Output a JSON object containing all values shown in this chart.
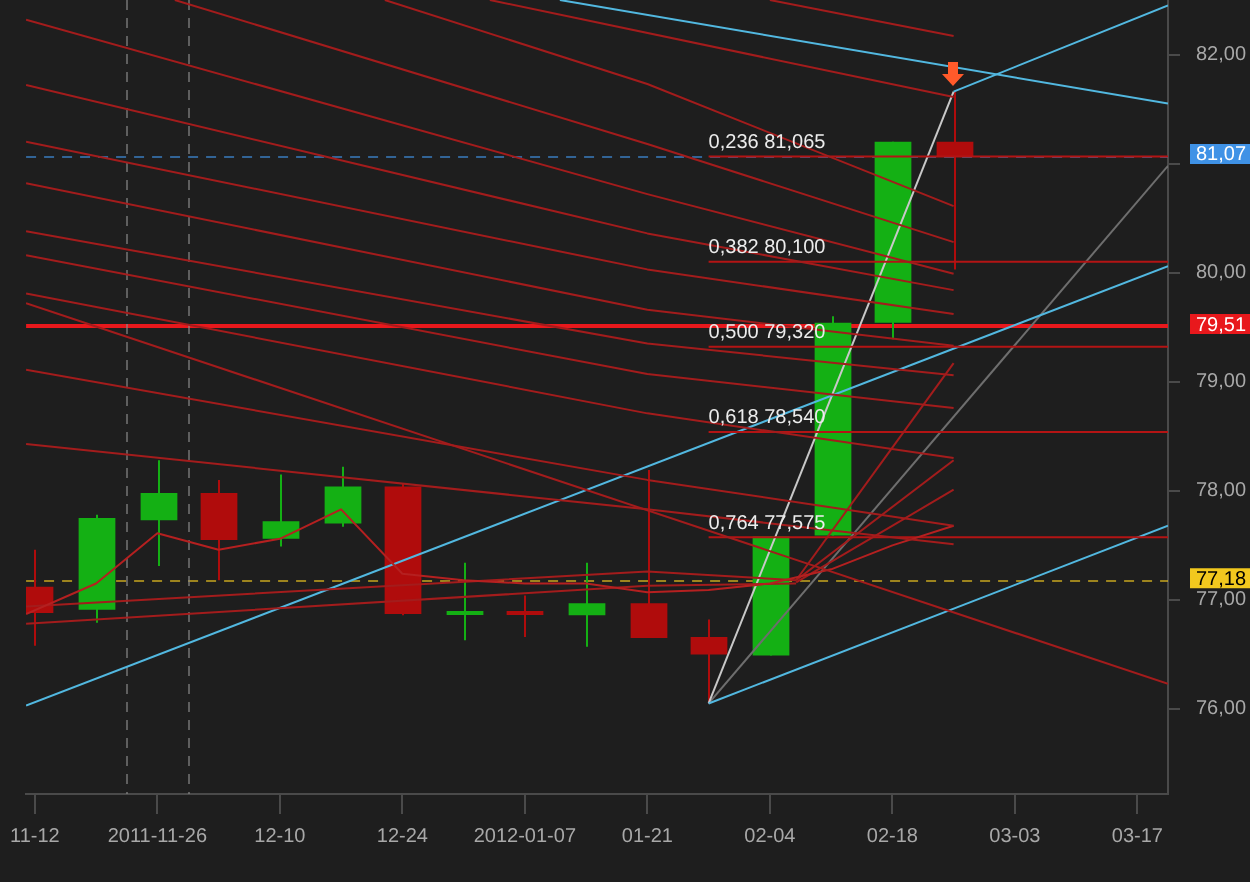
{
  "chart_data": {
    "type": "candlestick",
    "x": [
      "2011-11-12",
      "2011-11-19",
      "2011-11-26",
      "2011-12-03",
      "2011-12-10",
      "2011-12-17",
      "2011-12-24",
      "2011-12-31",
      "2012-01-07",
      "2012-01-14",
      "2012-01-21",
      "2012-01-28",
      "2012-02-04",
      "2012-02-11",
      "2012-02-18",
      "2012-02-25"
    ],
    "ohlc": [
      [
        77.12,
        77.46,
        76.58,
        76.88
      ],
      [
        76.91,
        77.78,
        76.79,
        77.75
      ],
      [
        77.73,
        78.28,
        77.31,
        77.98
      ],
      [
        77.98,
        78.1,
        77.18,
        77.55
      ],
      [
        77.56,
        78.15,
        77.49,
        77.72
      ],
      [
        77.7,
        78.22,
        77.67,
        78.04
      ],
      [
        78.04,
        78.07,
        76.86,
        76.87
      ],
      [
        76.87,
        77.34,
        76.63,
        76.89
      ],
      [
        76.89,
        77.04,
        76.66,
        76.87
      ],
      [
        76.86,
        77.34,
        76.57,
        76.97
      ],
      [
        76.97,
        78.19,
        76.65,
        76.65
      ],
      [
        76.66,
        76.82,
        76.05,
        76.5
      ],
      [
        76.49,
        77.58,
        76.49,
        77.58
      ],
      [
        77.59,
        79.6,
        77.59,
        79.54
      ],
      [
        79.54,
        81.2,
        79.39,
        81.2
      ],
      [
        81.2,
        81.66,
        80.03,
        81.07
      ]
    ],
    "colors": [
      "#b00c0c",
      "#14b014",
      "#14b014",
      "#b00c0c",
      "#14b014",
      "#14b014",
      "#b00c0c",
      "#14b014",
      "#b00c0c",
      "#14b014",
      "#b00c0c",
      "#b00c0c",
      "#14b014",
      "#14b014",
      "#14b014",
      "#b00c0c"
    ],
    "series": [
      {
        "type": "line",
        "color": "#a31c1c",
        "x": [
          "2012-02-04",
          "2012-02-25"
        ],
        "values": [
          82.5,
          82.17
        ]
      },
      {
        "type": "line",
        "color": "#a31c1c",
        "x": [
          "2012-01-03",
          "2012-02-25"
        ],
        "values": [
          82.5,
          81.61
        ]
      },
      {
        "type": "line",
        "color": "#a31c1c",
        "x": [
          "2011-11-28",
          "2012-01-21",
          "2012-02-25"
        ],
        "values": [
          82.5,
          81.18,
          80.28
        ]
      },
      {
        "type": "line",
        "color": "#a31c1c",
        "x": [
          "2011-12-22",
          "2012-01-21",
          "2012-02-25"
        ],
        "values": [
          82.5,
          81.73,
          80.61
        ]
      },
      {
        "type": "line",
        "color": "#a31c1c",
        "x": [
          "2011-11-11",
          "2012-01-21",
          "2012-02-25"
        ],
        "values": [
          82.32,
          80.72,
          79.99
        ]
      },
      {
        "type": "line",
        "color": "#a31c1c",
        "x": [
          "2011-11-11",
          "2012-01-21",
          "2012-02-25"
        ],
        "values": [
          81.72,
          80.36,
          79.84
        ]
      },
      {
        "type": "line",
        "color": "#a31c1c",
        "x": [
          "2011-11-11",
          "2012-01-21",
          "2012-02-25"
        ],
        "values": [
          81.2,
          80.03,
          79.62
        ]
      },
      {
        "type": "line",
        "color": "#a31c1c",
        "x": [
          "2011-11-11",
          "2012-01-21",
          "2012-02-25"
        ],
        "values": [
          80.82,
          79.66,
          79.33
        ]
      },
      {
        "type": "line",
        "color": "#a31c1c",
        "x": [
          "2011-11-11",
          "2012-01-21",
          "2012-02-25"
        ],
        "values": [
          80.38,
          79.35,
          79.06
        ]
      },
      {
        "type": "line",
        "color": "#a31c1c",
        "x": [
          "2011-11-11",
          "2012-01-21",
          "2012-02-25"
        ],
        "values": [
          80.16,
          79.07,
          78.76
        ]
      },
      {
        "type": "line",
        "color": "#a31c1c",
        "x": [
          "2011-11-11",
          "2012-01-21",
          "2012-02-25"
        ],
        "values": [
          79.81,
          78.71,
          78.3
        ]
      },
      {
        "type": "line",
        "color": "#a31c1c",
        "x": [
          "2011-11-11",
          "2012-03-20T12:00"
        ],
        "values": [
          79.72,
          76.23
        ]
      },
      {
        "type": "line",
        "color": "#a31c1c",
        "x": [
          "2011-11-11",
          "2012-01-21",
          "2012-02-25"
        ],
        "values": [
          79.11,
          78.1,
          77.68
        ]
      },
      {
        "type": "line",
        "color": "#a31c1c",
        "x": [
          "2011-11-11",
          "2012-01-21",
          "2012-02-25"
        ],
        "values": [
          78.43,
          77.83,
          77.51
        ]
      },
      {
        "type": "line",
        "color": "#b52020",
        "x": [
          "2011-11-11",
          "2011-11-19",
          "2011-11-26",
          "2011-12-03",
          "2011-12-10",
          "2011-12-17",
          "2011-12-24",
          "2011-12-31",
          "2012-01-07",
          "2012-01-14",
          "2012-01-21",
          "2012-01-28",
          "2012-02-04",
          "2012-02-11",
          "2012-02-18",
          "2012-02-25"
        ],
        "values": [
          76.87,
          77.15,
          77.61,
          77.46,
          77.56,
          77.83,
          77.24,
          77.18,
          77.15,
          77.15,
          77.07,
          77.09,
          77.15,
          77.28,
          77.5,
          77.68
        ]
      },
      {
        "type": "line",
        "color": "#a31c1c",
        "x": [
          "2011-11-11",
          "2012-01-21",
          "2012-02-07"
        ],
        "values": [
          76.94,
          77.26,
          77.18
        ]
      },
      {
        "type": "line",
        "color": "#a31c1c",
        "x": [
          "2011-11-11",
          "2012-01-21",
          "2012-02-07"
        ],
        "values": [
          76.78,
          77.13,
          77.15
        ]
      },
      {
        "type": "line",
        "color": "#a31c1c",
        "x": [
          "2012-02-07",
          "2012-02-25"
        ],
        "values": [
          77.18,
          79.17
        ]
      },
      {
        "type": "line",
        "color": "#a31c1c",
        "x": [
          "2012-02-07",
          "2012-02-25"
        ],
        "values": [
          77.18,
          78.28
        ]
      },
      {
        "type": "line",
        "color": "#a31c1c",
        "x": [
          "2012-02-07",
          "2012-02-25"
        ],
        "values": [
          77.16,
          78.01
        ]
      },
      {
        "type": "line",
        "color": "#b41414",
        "x": [
          "2012-01-28",
          "2012-03-20T12:00"
        ],
        "values": [
          81.065,
          81.065
        ]
      },
      {
        "type": "line",
        "color": "#b41414",
        "x": [
          "2012-01-28",
          "2012-03-20T12:00"
        ],
        "values": [
          80.1,
          80.1
        ]
      },
      {
        "type": "line",
        "color": "#b41414",
        "x": [
          "2012-01-28",
          "2012-03-20T12:00"
        ],
        "values": [
          79.32,
          79.32
        ]
      },
      {
        "type": "line",
        "color": "#b41414",
        "x": [
          "2012-01-28",
          "2012-03-20T12:00"
        ],
        "values": [
          78.54,
          78.54
        ]
      },
      {
        "type": "line",
        "color": "#b41414",
        "x": [
          "2012-01-28",
          "2012-03-20T12:00"
        ],
        "values": [
          77.575,
          77.575
        ]
      },
      {
        "type": "line",
        "color": "#52b8e0",
        "x": [
          "2012-01-11",
          "2012-03-20T12:00"
        ],
        "values": [
          82.5,
          81.55
        ]
      },
      {
        "type": "line",
        "color": "#52b8e0",
        "x": [
          "2011-11-11",
          "2012-03-20T12:00"
        ],
        "values": [
          76.03,
          80.06
        ]
      },
      {
        "type": "line",
        "color": "#52b8e0",
        "x": [
          "2012-01-28",
          "2012-03-20T12:00"
        ],
        "values": [
          76.05,
          77.68
        ]
      },
      {
        "type": "line",
        "color": "#52b8e0",
        "x": [
          "2012-02-25",
          "2012-03-20T12:00"
        ],
        "values": [
          81.66,
          82.45
        ]
      },
      {
        "type": "line",
        "color": "#c8c8c8",
        "x": [
          "2012-01-28",
          "2012-02-25"
        ],
        "values": [
          76.05,
          81.66
        ]
      },
      {
        "type": "line",
        "color": "#6e6e6e",
        "x": [
          "2012-01-28",
          "2012-03-20T12:00"
        ],
        "values": [
          76.05,
          80.98
        ]
      }
    ],
    "xlim": [
      "2011-11-11",
      "2012-03-20T12:00"
    ],
    "xticks": [
      {
        "value": "2011-11-12",
        "label": "11-12"
      },
      {
        "value": "2011-11-26",
        "label": "2011-11-26"
      },
      {
        "value": "2011-12-10",
        "label": "12-10"
      },
      {
        "value": "2011-12-24",
        "label": "12-24"
      },
      {
        "value": "2012-01-07",
        "label": "2012-01-07"
      },
      {
        "value": "2012-01-21",
        "label": "01-21"
      },
      {
        "value": "2012-02-04",
        "label": "02-04"
      },
      {
        "value": "2012-02-18",
        "label": "02-18"
      },
      {
        "value": "2012-03-03",
        "label": "03-03"
      },
      {
        "value": "2012-03-17",
        "label": "03-17"
      }
    ],
    "ylim": [
      75.22,
      82.5
    ],
    "yticks": [
      {
        "value": 76,
        "label": "76,00"
      },
      {
        "value": 77,
        "label": "77,00"
      },
      {
        "value": 78,
        "label": "78,00"
      },
      {
        "value": 79,
        "label": "79,00"
      },
      {
        "value": 80,
        "label": "80,00"
      },
      {
        "value": 81,
        "label": null
      },
      {
        "value": 82,
        "label": "82,00"
      }
    ],
    "ref_lines": [
      {
        "axis": "y",
        "value": 81.07,
        "label": "81,07",
        "color": "#3f92e6",
        "line_style": "dashed"
      },
      {
        "axis": "y",
        "value": 79.51,
        "label": "79,51",
        "color": "#e8181c",
        "line_style": "solid"
      },
      {
        "axis": "y",
        "value": 77.18,
        "label": "77,18",
        "color": "#f2c81e",
        "line_style": "dashed"
      },
      {
        "axis": "x",
        "value": "2011-11-22T12:00",
        "color": "#8a8a8a",
        "line_style": "dashed"
      },
      {
        "axis": "x",
        "value": "2011-11-29T12:00",
        "color": "#8a8a8a",
        "line_style": "dashed"
      }
    ],
    "annotations": [
      {
        "text": "0,236 81,065",
        "x": "2012-01-28",
        "y": 81.065
      },
      {
        "text": "0,382 80,100",
        "x": "2012-01-28",
        "y": 80.1
      },
      {
        "text": "0,500 79,320",
        "x": "2012-01-28",
        "y": 79.32
      },
      {
        "text": "0,618 78,540",
        "x": "2012-01-28",
        "y": 78.54
      },
      {
        "text": "0,764 77,575",
        "x": "2012-01-28",
        "y": 77.575
      }
    ]
  }
}
